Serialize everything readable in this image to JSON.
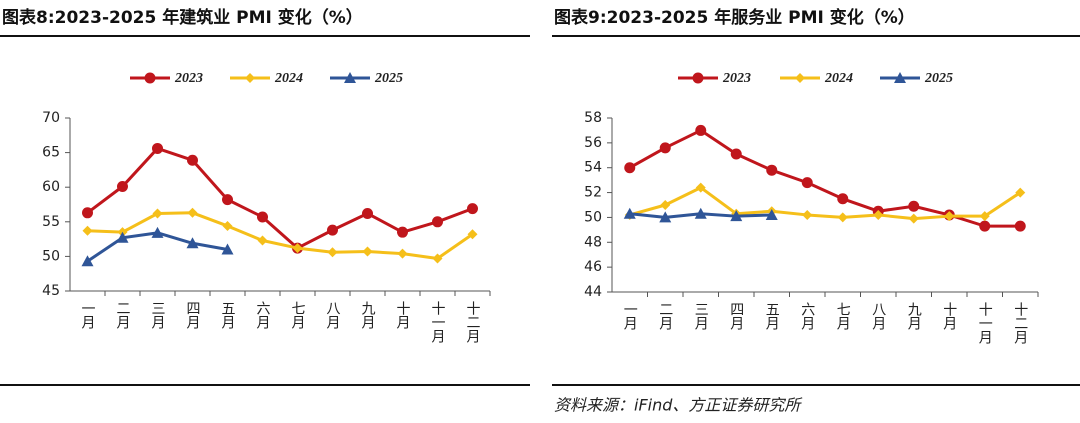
{
  "chart_data": [
    {
      "type": "line",
      "title": "图表8:2023-2025 年建筑业 PMI 变化（%）",
      "categories": [
        "一月",
        "二月",
        "三月",
        "四月",
        "五月",
        "六月",
        "七月",
        "八月",
        "九月",
        "十月",
        "十一月",
        "十二月"
      ],
      "ylim": [
        45,
        70
      ],
      "yticks": [
        45,
        50,
        55,
        60,
        65,
        70
      ],
      "series": [
        {
          "name": "2023",
          "color": "#c0161c",
          "values": [
            56.3,
            60.1,
            65.6,
            63.9,
            58.2,
            55.7,
            51.2,
            53.8,
            56.2,
            53.5,
            55.0,
            56.9
          ]
        },
        {
          "name": "2024",
          "color": "#f5bf1a",
          "values": [
            53.7,
            53.5,
            56.2,
            56.3,
            54.4,
            52.3,
            51.2,
            50.6,
            50.7,
            50.4,
            49.7,
            53.2
          ]
        },
        {
          "name": "2025",
          "color": "#2f5597",
          "values": [
            49.3,
            52.7,
            53.4,
            51.9,
            51.0,
            null,
            null,
            null,
            null,
            null,
            null,
            null
          ]
        }
      ]
    },
    {
      "type": "line",
      "title": "图表9:2023-2025 年服务业 PMI 变化（%）",
      "categories": [
        "一月",
        "二月",
        "三月",
        "四月",
        "五月",
        "六月",
        "七月",
        "八月",
        "九月",
        "十月",
        "十一月",
        "十二月"
      ],
      "ylim": [
        44,
        58
      ],
      "yticks": [
        44,
        46,
        48,
        50,
        52,
        54,
        56,
        58
      ],
      "series": [
        {
          "name": "2023",
          "color": "#c0161c",
          "values": [
            54.0,
            55.6,
            57.0,
            55.1,
            53.8,
            52.8,
            51.5,
            50.5,
            50.9,
            50.2,
            49.3,
            49.3
          ]
        },
        {
          "name": "2024",
          "color": "#f5bf1a",
          "values": [
            50.2,
            51.0,
            52.4,
            50.3,
            50.5,
            50.2,
            50.0,
            50.2,
            49.9,
            50.1,
            50.1,
            52.0
          ]
        },
        {
          "name": "2025",
          "color": "#2f5597",
          "values": [
            50.3,
            50.0,
            50.3,
            50.1,
            50.2,
            null,
            null,
            null,
            null,
            null,
            null,
            null
          ]
        }
      ],
      "source": "资料来源：iFind、方正证券研究所"
    }
  ]
}
